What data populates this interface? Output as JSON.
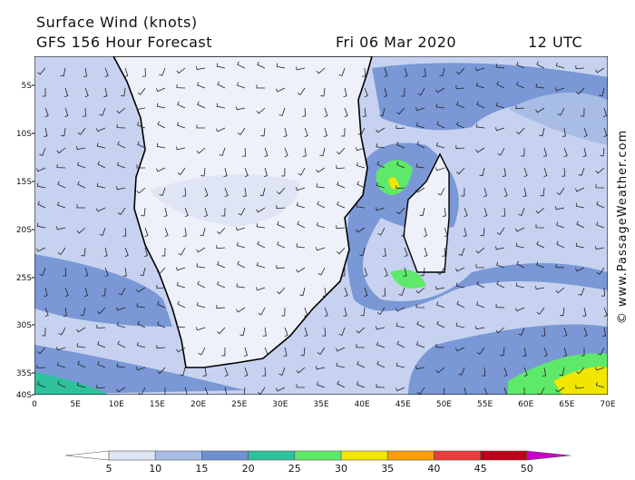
{
  "header": {
    "title": "Surface Wind (knots)",
    "subtitle": "GFS 156 Hour Forecast",
    "date": "Fri 06 Mar 2020",
    "time": "12 UTC"
  },
  "map": {
    "lat_labels": [
      "5S",
      "10S",
      "15S",
      "20S",
      "25S",
      "30S",
      "35S",
      "40S"
    ],
    "lon_labels": [
      "0",
      "5E",
      "10E",
      "15E",
      "20E",
      "25E",
      "30E",
      "35E",
      "40E",
      "45E",
      "50E",
      "55E",
      "60E",
      "65E",
      "70E"
    ]
  },
  "colorbar": {
    "labels": [
      "5",
      "10",
      "15",
      "20",
      "25",
      "30",
      "35",
      "40",
      "45",
      "50"
    ],
    "colors": [
      "#ffffff",
      "#dfe5f5",
      "#a8bde6",
      "#6f8fd3",
      "#2ec19c",
      "#5fe96a",
      "#f2e600",
      "#f7a000",
      "#ef3b3b",
      "#c00018",
      "#c800c8"
    ]
  },
  "credit": "© www.PassageWeather.com"
}
